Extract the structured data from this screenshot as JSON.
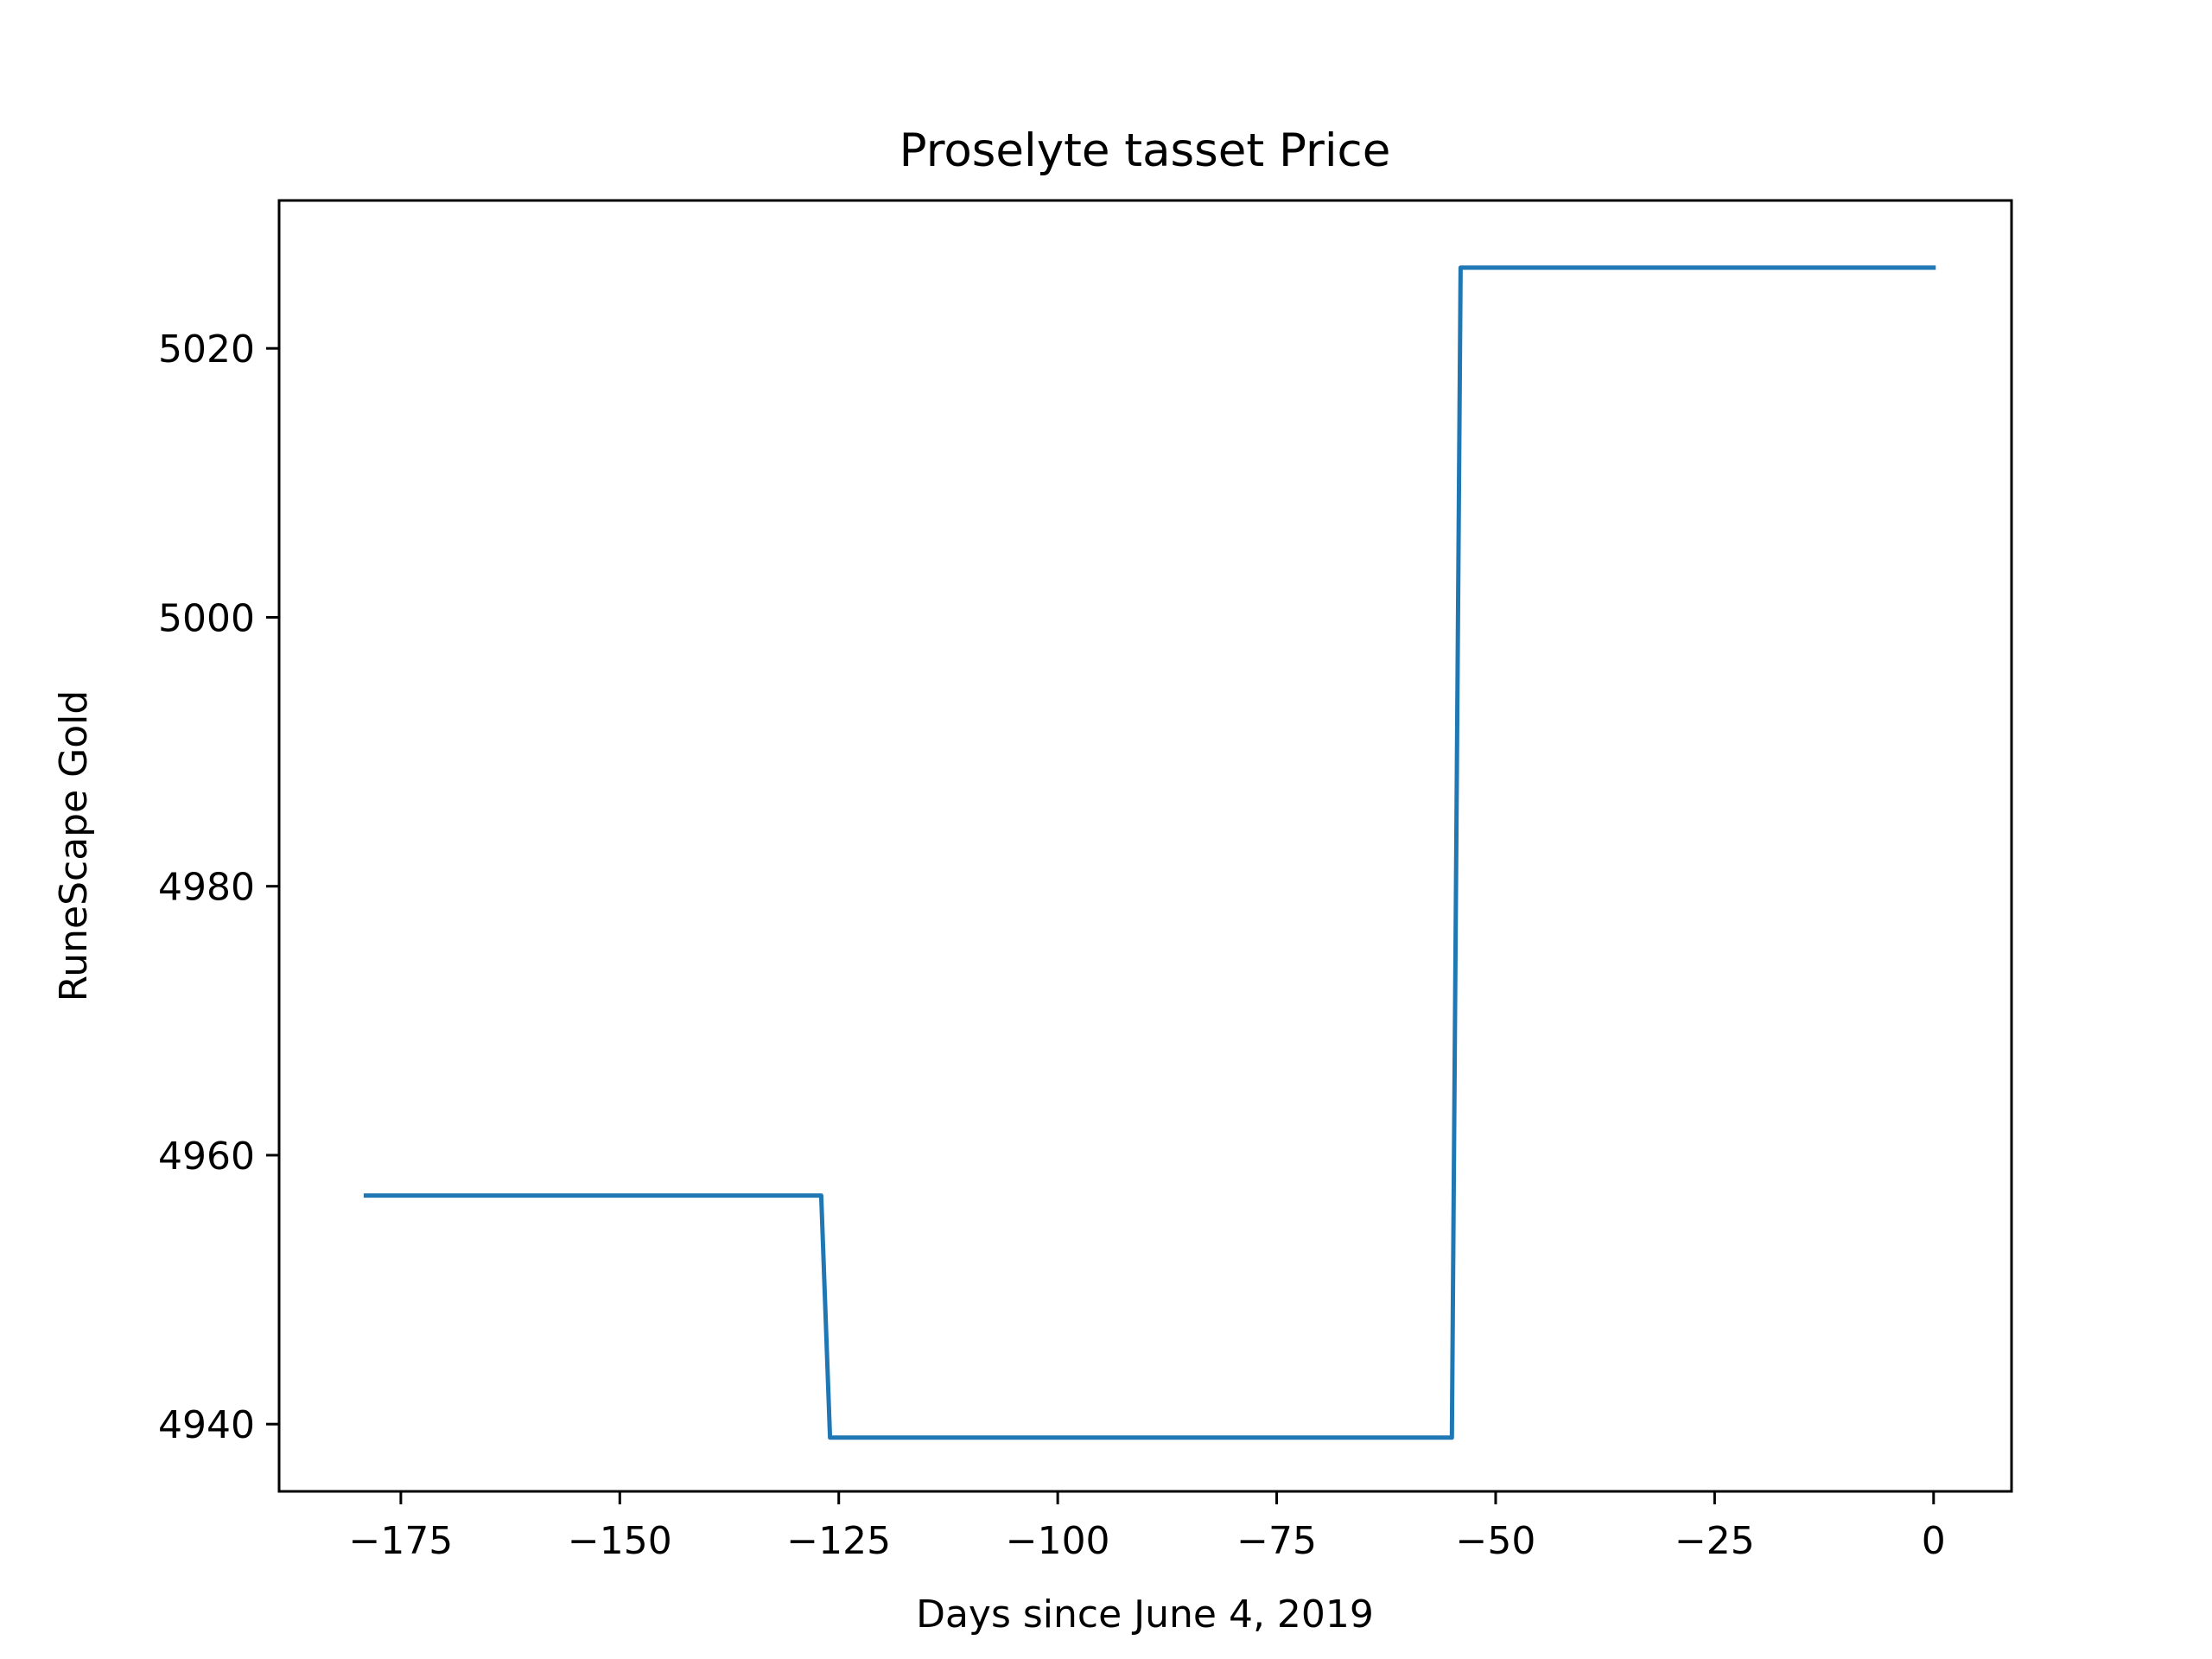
{
  "chart_data": {
    "type": "line",
    "title": "Proselyte tasset Price",
    "xlabel": "Days since June 4, 2019",
    "ylabel": "RuneScape Gold",
    "xlim": [
      -188.9,
      8.9
    ],
    "ylim": [
      4935,
      5031
    ],
    "x_ticks": [
      -175,
      -150,
      -125,
      -100,
      -75,
      -50,
      -25,
      0
    ],
    "x_tick_labels": [
      "−175",
      "−150",
      "−125",
      "−100",
      "−75",
      "−50",
      "−25",
      "0"
    ],
    "y_ticks": [
      4940,
      4960,
      4980,
      5000,
      5020
    ],
    "y_tick_labels": [
      "4940",
      "4960",
      "4980",
      "5000",
      "5020"
    ],
    "grid": false,
    "series": [
      {
        "color": "#1f77b4",
        "x": [
          -179,
          -127,
          -126,
          -55,
          -54,
          0
        ],
        "y": [
          4957,
          4957,
          4939,
          4939,
          5026,
          5026
        ]
      }
    ]
  }
}
